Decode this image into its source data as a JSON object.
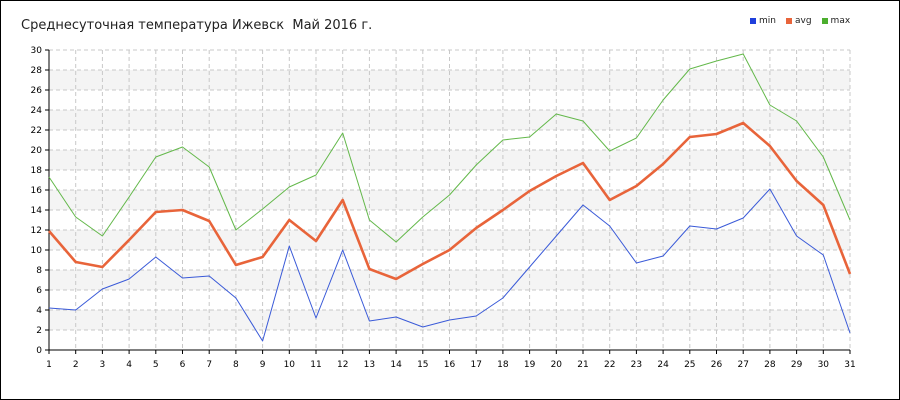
{
  "chart_data": {
    "type": "line",
    "title": "Среднесуточная температура Ижевск  Май 2016 г.",
    "xlabel": "",
    "ylabel": "",
    "categories": [
      "1",
      "2",
      "3",
      "4",
      "5",
      "6",
      "7",
      "8",
      "9",
      "10",
      "11",
      "12",
      "13",
      "14",
      "15",
      "16",
      "17",
      "18",
      "19",
      "20",
      "21",
      "22",
      "23",
      "24",
      "25",
      "26",
      "27",
      "28",
      "29",
      "30",
      "31"
    ],
    "xlim": [
      1,
      31
    ],
    "ylim": [
      0,
      30
    ],
    "yticks": [
      "0",
      "2",
      "4",
      "6",
      "8",
      "10",
      "12",
      "14",
      "16",
      "18",
      "20",
      "22",
      "24",
      "26",
      "28",
      "30"
    ],
    "grid": true,
    "legend_position": "top-right",
    "series": [
      {
        "name": "min",
        "color": "#3a5ad8",
        "legend_color": "#1f3fdc",
        "values": [
          4.2,
          4.0,
          6.1,
          7.1,
          9.3,
          7.2,
          7.4,
          5.2,
          0.9,
          10.4,
          3.2,
          10.0,
          2.9,
          3.3,
          2.3,
          3.0,
          3.4,
          5.2,
          8.3,
          11.4,
          14.5,
          12.4,
          8.7,
          9.4,
          12.4,
          12.1,
          13.2,
          16.1,
          11.4,
          9.5,
          1.7
        ]
      },
      {
        "name": "avg",
        "color": "#e8643a",
        "legend_color": "#e8643a",
        "values": [
          11.9,
          8.8,
          8.3,
          11.0,
          13.8,
          14.0,
          12.9,
          8.5,
          9.3,
          13.0,
          10.9,
          15.0,
          8.1,
          7.1,
          8.6,
          10.0,
          12.2,
          14.0,
          15.9,
          17.4,
          18.7,
          15.0,
          16.4,
          18.6,
          21.3,
          21.6,
          22.7,
          20.4,
          16.9,
          14.5,
          7.6
        ]
      },
      {
        "name": "max",
        "color": "#63b84a",
        "legend_color": "#4cae2e",
        "values": [
          17.3,
          13.3,
          11.4,
          15.3,
          19.3,
          20.3,
          18.3,
          12.0,
          14.1,
          16.3,
          17.5,
          21.7,
          13.0,
          10.8,
          13.3,
          15.5,
          18.5,
          21.0,
          21.3,
          23.6,
          22.9,
          19.9,
          21.2,
          25.0,
          28.1,
          28.9,
          29.6,
          24.5,
          22.9,
          19.3,
          13.0
        ]
      }
    ]
  }
}
